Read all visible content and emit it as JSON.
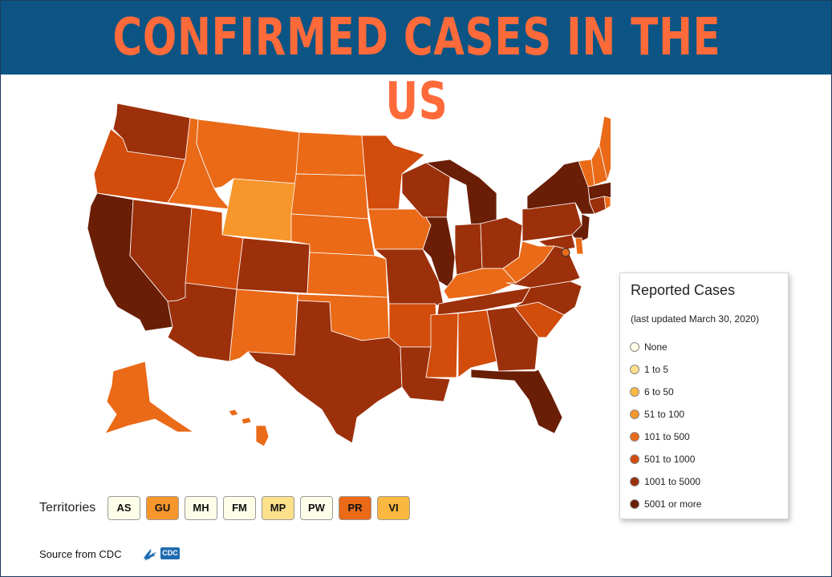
{
  "header": {
    "title": "CONFIRMED CASES IN THE US"
  },
  "legend": {
    "title": "Reported Cases",
    "subtitle": "(last updated March 30, 2020)",
    "items": [
      {
        "label": "None",
        "color": "#fdfde8"
      },
      {
        "label": "1 to 5",
        "color": "#fde08a"
      },
      {
        "label": "6 to 50",
        "color": "#fbb840"
      },
      {
        "label": "51 to 100",
        "color": "#f7962a"
      },
      {
        "label": "101 to 500",
        "color": "#ea6a18"
      },
      {
        "label": "501 to 1000",
        "color": "#d24c0c"
      },
      {
        "label": "1001 to 5000",
        "color": "#9c300b"
      },
      {
        "label": "5001 or more",
        "color": "#6a1e06"
      }
    ]
  },
  "territories": {
    "label": "Territories",
    "items": [
      {
        "code": "AS",
        "color": "#fdfde8"
      },
      {
        "code": "GU",
        "color": "#f7962a"
      },
      {
        "code": "MH",
        "color": "#fdfde8"
      },
      {
        "code": "FM",
        "color": "#fdfde8"
      },
      {
        "code": "MP",
        "color": "#fde08a"
      },
      {
        "code": "PW",
        "color": "#fdfde8"
      },
      {
        "code": "PR",
        "color": "#ea6a18"
      },
      {
        "code": "VI",
        "color": "#fbb840"
      }
    ]
  },
  "source": {
    "text": "Source from CDC",
    "logo_text": "CDC"
  },
  "map": {
    "states": [
      {
        "id": "WA",
        "color": "#9c300b"
      },
      {
        "id": "OR",
        "color": "#d24c0c"
      },
      {
        "id": "CA",
        "color": "#6a1e06"
      },
      {
        "id": "ID",
        "color": "#ea6a18"
      },
      {
        "id": "NV",
        "color": "#9c300b"
      },
      {
        "id": "MT",
        "color": "#ea6a18"
      },
      {
        "id": "WY",
        "color": "#f7962a"
      },
      {
        "id": "UT",
        "color": "#d24c0c"
      },
      {
        "id": "AZ",
        "color": "#9c300b"
      },
      {
        "id": "CO",
        "color": "#9c300b"
      },
      {
        "id": "NM",
        "color": "#ea6a18"
      },
      {
        "id": "ND",
        "color": "#ea6a18"
      },
      {
        "id": "SD",
        "color": "#ea6a18"
      },
      {
        "id": "NE",
        "color": "#ea6a18"
      },
      {
        "id": "KS",
        "color": "#ea6a18"
      },
      {
        "id": "OK",
        "color": "#ea6a18"
      },
      {
        "id": "TX",
        "color": "#9c300b"
      },
      {
        "id": "MN",
        "color": "#d24c0c"
      },
      {
        "id": "IA",
        "color": "#ea6a18"
      },
      {
        "id": "MO",
        "color": "#9c300b"
      },
      {
        "id": "AR",
        "color": "#d24c0c"
      },
      {
        "id": "LA",
        "color": "#9c300b"
      },
      {
        "id": "WI",
        "color": "#9c300b"
      },
      {
        "id": "IL",
        "color": "#6a1e06"
      },
      {
        "id": "MI",
        "color": "#6a1e06"
      },
      {
        "id": "IN",
        "color": "#9c300b"
      },
      {
        "id": "OH",
        "color": "#9c300b"
      },
      {
        "id": "KY",
        "color": "#ea6a18"
      },
      {
        "id": "TN",
        "color": "#9c300b"
      },
      {
        "id": "MS",
        "color": "#d24c0c"
      },
      {
        "id": "AL",
        "color": "#d24c0c"
      },
      {
        "id": "GA",
        "color": "#9c300b"
      },
      {
        "id": "FL",
        "color": "#6a1e06"
      },
      {
        "id": "SC",
        "color": "#d24c0c"
      },
      {
        "id": "NC",
        "color": "#9c300b"
      },
      {
        "id": "VA",
        "color": "#9c300b"
      },
      {
        "id": "WV",
        "color": "#ea6a18"
      },
      {
        "id": "PA",
        "color": "#9c300b"
      },
      {
        "id": "NY",
        "color": "#6a1e06"
      },
      {
        "id": "NJ",
        "color": "#6a1e06"
      },
      {
        "id": "MD",
        "color": "#9c300b"
      },
      {
        "id": "DE",
        "color": "#ea6a18"
      },
      {
        "id": "DC",
        "color": "#ea6a18"
      },
      {
        "id": "CT",
        "color": "#9c300b"
      },
      {
        "id": "RI",
        "color": "#ea6a18"
      },
      {
        "id": "MA",
        "color": "#6a1e06"
      },
      {
        "id": "VT",
        "color": "#ea6a18"
      },
      {
        "id": "NH",
        "color": "#ea6a18"
      },
      {
        "id": "ME",
        "color": "#ea6a18"
      },
      {
        "id": "AK",
        "color": "#ea6a18"
      },
      {
        "id": "HI",
        "color": "#ea6a18"
      }
    ]
  }
}
